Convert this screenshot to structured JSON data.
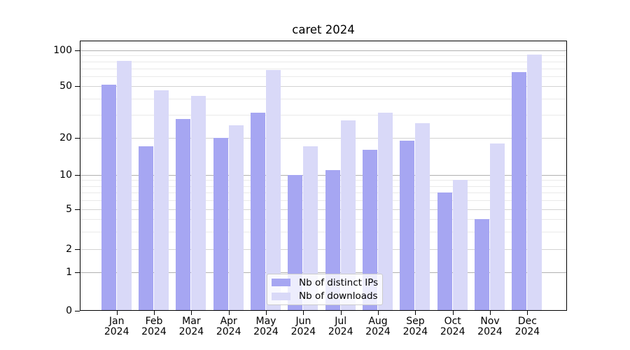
{
  "chart_data": {
    "type": "bar",
    "title": "caret 2024",
    "categories": [
      "Jan",
      "Feb",
      "Mar",
      "Apr",
      "May",
      "Jun",
      "Jul",
      "Aug",
      "Sep",
      "Oct",
      "Nov",
      "Dec"
    ],
    "year_label": "2024",
    "series": [
      {
        "name": "Nb of distinct IPs",
        "color": "#a6a6f2",
        "values": [
          51,
          17,
          28,
          20,
          31,
          10,
          11,
          16,
          19,
          7,
          4,
          65
        ]
      },
      {
        "name": "Nb of downloads",
        "color": "#d9d9f8",
        "values": [
          81,
          46,
          42,
          25,
          68,
          17,
          27,
          31,
          26,
          9,
          18,
          91
        ]
      }
    ],
    "y_axis": {
      "scale": "asinh-like (log above 1, linear 0-1)",
      "ticks": [
        0,
        1,
        2,
        5,
        10,
        20,
        50,
        100
      ],
      "minor_gridlines": [
        3,
        4,
        6,
        7,
        8,
        9,
        30,
        40,
        60,
        70,
        80,
        90
      ],
      "range_top": 121
    },
    "x_axis": {
      "label_lines": 2
    },
    "legend": {
      "labels": [
        "Nb of distinct IPs",
        "Nb of downloads"
      ],
      "position": "inside-bottom-center"
    },
    "grid": "horizontal"
  },
  "colors": {
    "background": "#ffffff",
    "bar_distinct_ips": "#a6a6f2",
    "bar_downloads": "#d9d9f8",
    "grid_major": "#b0b0b0",
    "grid_mid": "#d2d2d2",
    "grid_minor": "#eaeaea",
    "axis": "#000000",
    "legend_border": "#cccccc"
  }
}
